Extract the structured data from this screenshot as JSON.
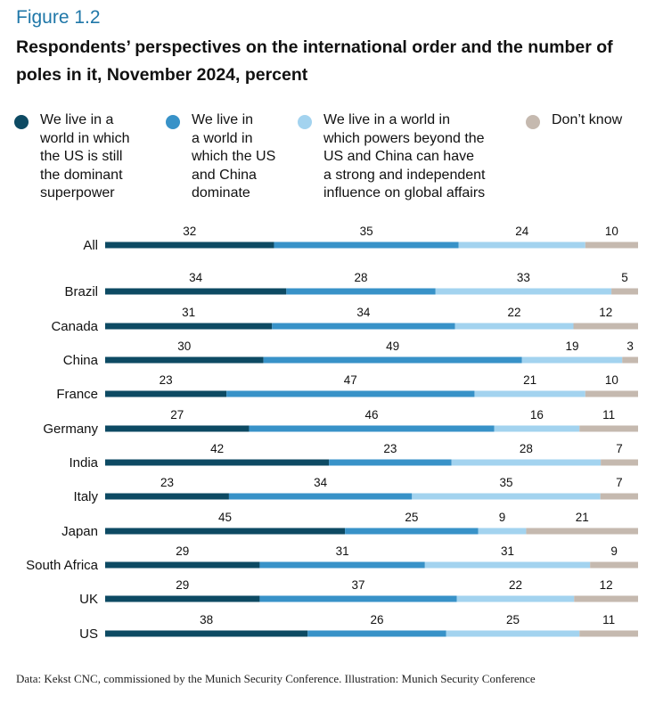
{
  "figure_label": "Figure 1.2",
  "title": "Respondents’ perspectives on the international order and the number of poles in it, November 2024, percent",
  "source": "Data: Kekst CNC, commissioned by the Munich Security Conference. Illustration: Munich Security Conference",
  "legend": [
    {
      "label": "We live in a\nworld in which\nthe US is still\nthe dominant\nsuperpower",
      "color": "#0d4a63"
    },
    {
      "label": "We live in\na world in\nwhich the US\nand China\ndominate",
      "color": "#3892c8"
    },
    {
      "label": "We live in a world in\nwhich powers beyond the\nUS and China can have\na strong and independent\ninfluence on global affairs",
      "color": "#a3d3ef"
    },
    {
      "label": "Don’t know",
      "color": "#c5b9af"
    }
  ],
  "chart_data": {
    "type": "bar",
    "orientation": "horizontal",
    "stacked": true,
    "title": "Respondents’ perspectives on the international order and the number of poles in it, November 2024, percent",
    "xlabel": "",
    "ylabel": "",
    "xlim": [
      0,
      100
    ],
    "grid": false,
    "legend_position": "top",
    "categories": [
      "All",
      "Brazil",
      "Canada",
      "China",
      "France",
      "Germany",
      "India",
      "Italy",
      "Japan",
      "South Africa",
      "UK",
      "US"
    ],
    "series": [
      {
        "name": "We live in a world in which the US is still the dominant superpower",
        "color": "#0d4a63",
        "values": [
          32,
          34,
          31,
          30,
          23,
          27,
          42,
          23,
          45,
          29,
          29,
          38
        ]
      },
      {
        "name": "We live in a world in which the US and China dominate",
        "color": "#3892c8",
        "values": [
          35,
          28,
          34,
          49,
          47,
          46,
          23,
          34,
          25,
          31,
          37,
          26
        ]
      },
      {
        "name": "We live in a world in which powers beyond the US and China can have a strong and independent influence on global affairs",
        "color": "#a3d3ef",
        "values": [
          24,
          33,
          22,
          19,
          21,
          16,
          28,
          35,
          9,
          31,
          22,
          25
        ]
      },
      {
        "name": "Don’t know",
        "color": "#c5b9af",
        "values": [
          10,
          5,
          12,
          3,
          10,
          11,
          7,
          7,
          21,
          9,
          12,
          11
        ]
      }
    ]
  }
}
